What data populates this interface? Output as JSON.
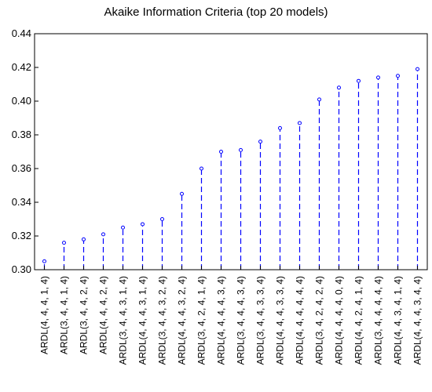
{
  "chart_data": {
    "type": "scatter",
    "style": "stem",
    "title": "Akaike Information Criteria (top 20 models)",
    "xlabel": "",
    "ylabel": "",
    "ylim": [
      0.3,
      0.44
    ],
    "yticks": [
      "0.30",
      "0.32",
      "0.34",
      "0.36",
      "0.38",
      "0.40",
      "0.42",
      "0.44"
    ],
    "grid": false,
    "series_color": "#0000ff",
    "categories": [
      "ARDL(4, 4, 4, 1, 4)",
      "ARDL(3, 4, 4, 1, 4)",
      "ARDL(3, 4, 4, 2, 4)",
      "ARDL(4, 4, 4, 2, 4)",
      "ARDL(3, 4, 4, 3, 1, 4)",
      "ARDL(4, 4, 4, 3, 1, 4)",
      "ARDL(3, 4, 4, 3, 2, 4)",
      "ARDL(4, 4, 4, 3, 2, 4)",
      "ARDL(3, 4, 2, 4, 1, 4)",
      "ARDL(4, 4, 4, 4, 3, 4)",
      "ARDL(3, 4, 4, 4, 3, 4)",
      "ARDL(3, 4, 4, 3, 3, 4)",
      "ARDL(4, 4, 4, 3, 3, 4)",
      "ARDL(4, 4, 4, 4, 4, 4)",
      "ARDL(3, 4, 2, 4, 2, 4)",
      "ARDL(4, 4, 4, 4, 0, 4)",
      "ARDL(4, 4, 2, 4, 1, 4)",
      "ARDL(3, 4, 4, 4, 4, 4)",
      "ARDL(4, 4, 3, 4, 1, 4)",
      "ARDL(4, 4, 4, 3, 4, 4)"
    ],
    "values": [
      0.305,
      0.316,
      0.318,
      0.321,
      0.325,
      0.327,
      0.33,
      0.345,
      0.36,
      0.37,
      0.371,
      0.376,
      0.384,
      0.387,
      0.401,
      0.408,
      0.412,
      0.414,
      0.415,
      0.419
    ]
  }
}
